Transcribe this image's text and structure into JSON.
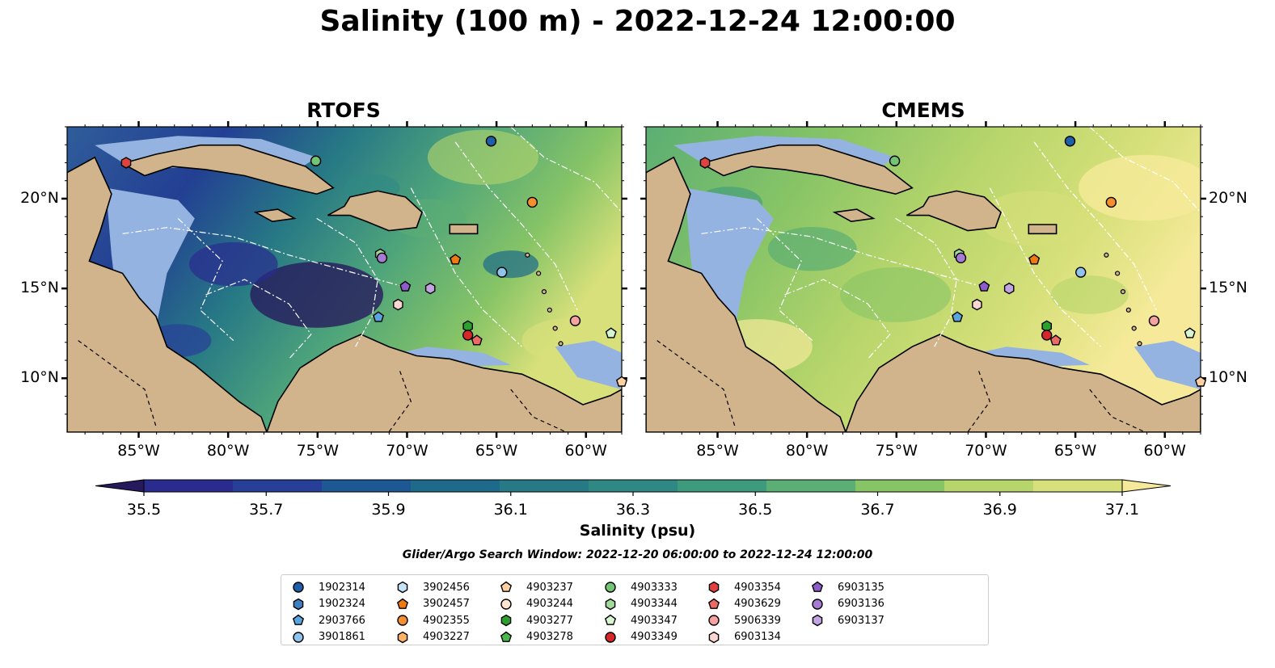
{
  "title": "Salinity (100 m) - 2022-12-24 12:00:00",
  "panels": [
    {
      "id": "rtofs",
      "title": "RTOFS",
      "variant": "rtofs"
    },
    {
      "id": "cmems",
      "title": "CMEMS",
      "variant": "cmems"
    }
  ],
  "map_extent": {
    "lon_min": -89,
    "lon_max": -58,
    "lat_min": 7,
    "lat_max": 24
  },
  "lon_ticks": [
    {
      "value": -85,
      "label": "85°W"
    },
    {
      "value": -80,
      "label": "80°W"
    },
    {
      "value": -75,
      "label": "75°W"
    },
    {
      "value": -70,
      "label": "70°W"
    },
    {
      "value": -65,
      "label": "65°W"
    },
    {
      "value": -60,
      "label": "60°W"
    }
  ],
  "lat_ticks": [
    {
      "value": 20,
      "label": "20°N"
    },
    {
      "value": 15,
      "label": "15°N"
    },
    {
      "value": 10,
      "label": "10°N"
    }
  ],
  "colorbar": {
    "label": "Salinity (psu)",
    "min": 35.4,
    "max": 37.2,
    "ticks": [
      {
        "value": 35.5,
        "label": "35.5"
      },
      {
        "value": 35.7,
        "label": "35.7"
      },
      {
        "value": 35.9,
        "label": "35.9"
      },
      {
        "value": 36.1,
        "label": "36.1"
      },
      {
        "value": 36.3,
        "label": "36.3"
      },
      {
        "value": 36.5,
        "label": "36.5"
      },
      {
        "value": 36.7,
        "label": "36.7"
      },
      {
        "value": 36.9,
        "label": "36.9"
      },
      {
        "value": 37.1,
        "label": "37.1"
      }
    ],
    "colors": [
      "#271a5c",
      "#2a2b8f",
      "#283f99",
      "#1e5894",
      "#1d6a8a",
      "#277985",
      "#308884",
      "#3e9a7d",
      "#5bae74",
      "#87c466",
      "#b6d56b",
      "#d7e07a",
      "#f6ea9a"
    ]
  },
  "search_window": "Glider/Argo Search Window: 2022-12-20 06:00:00 to 2022-12-24 12:00:00",
  "colors": {
    "land": "#d2b48c",
    "shelf": "#95b3e0",
    "deep_pacific": "#291a63"
  },
  "legend": [
    {
      "id": "1902314",
      "marker": "circle",
      "color": "#1f5fa8"
    },
    {
      "id": "1902324",
      "marker": "hexagon",
      "color": "#3d7fc1"
    },
    {
      "id": "2903766",
      "marker": "pentagon",
      "color": "#5aa5df"
    },
    {
      "id": "3901861",
      "marker": "circle",
      "color": "#8fc3ec"
    },
    {
      "id": "3902456",
      "marker": "hexagon",
      "color": "#c6e3f7"
    },
    {
      "id": "3902457",
      "marker": "pentagon",
      "color": "#f07a12"
    },
    {
      "id": "4902355",
      "marker": "circle",
      "color": "#f58f2e"
    },
    {
      "id": "4903227",
      "marker": "hexagon",
      "color": "#fdb265"
    },
    {
      "id": "4903237",
      "marker": "pentagon",
      "color": "#fdd0a2"
    },
    {
      "id": "4903244",
      "marker": "circle",
      "color": "#fde5cf"
    },
    {
      "id": "4903277",
      "marker": "hexagon",
      "color": "#2ca02c"
    },
    {
      "id": "4903278",
      "marker": "pentagon",
      "color": "#4cb84c"
    },
    {
      "id": "4903333",
      "marker": "circle",
      "color": "#74c476"
    },
    {
      "id": "4903344",
      "marker": "hexagon",
      "color": "#a1d99b"
    },
    {
      "id": "4903347",
      "marker": "pentagon",
      "color": "#d6f5d0"
    },
    {
      "id": "4903349",
      "marker": "circle",
      "color": "#d62728"
    },
    {
      "id": "4903354",
      "marker": "hexagon",
      "color": "#e0433f"
    },
    {
      "id": "4903629",
      "marker": "pentagon",
      "color": "#ea6a66"
    },
    {
      "id": "5906339",
      "marker": "circle",
      "color": "#f4a3a0"
    },
    {
      "id": "6903134",
      "marker": "hexagon",
      "color": "#fbd6d2"
    },
    {
      "id": "6903135",
      "marker": "pentagon",
      "color": "#8e5cc8"
    },
    {
      "id": "6903136",
      "marker": "circle",
      "color": "#a57bd4"
    },
    {
      "id": "6903137",
      "marker": "hexagon",
      "color": "#c2a4e3"
    }
  ],
  "platform_positions": [
    {
      "id": "1902314",
      "lon": -65.3,
      "lat": 23.2
    },
    {
      "id": "4903333",
      "lon": -75.1,
      "lat": 22.1
    },
    {
      "id": "4903354",
      "lon": -85.7,
      "lat": 22.0
    },
    {
      "id": "4902355",
      "lon": -63.0,
      "lat": 19.8
    },
    {
      "id": "3902457",
      "lon": -67.3,
      "lat": 16.6
    },
    {
      "id": "3901861",
      "lon": -64.7,
      "lat": 15.9
    },
    {
      "id": "4903344",
      "lon": -71.5,
      "lat": 16.9
    },
    {
      "id": "6903136",
      "lon": -71.4,
      "lat": 16.7
    },
    {
      "id": "6903135",
      "lon": -70.1,
      "lat": 15.1
    },
    {
      "id": "6903137",
      "lon": -68.7,
      "lat": 15.0
    },
    {
      "id": "6903134",
      "lon": -70.5,
      "lat": 14.1
    },
    {
      "id": "2903766",
      "lon": -71.6,
      "lat": 13.4
    },
    {
      "id": "4903277",
      "lon": -66.6,
      "lat": 12.9
    },
    {
      "id": "4903349",
      "lon": -66.6,
      "lat": 12.4
    },
    {
      "id": "4903629",
      "lon": -66.1,
      "lat": 12.1
    },
    {
      "id": "5906339",
      "lon": -60.6,
      "lat": 13.2
    },
    {
      "id": "4903347",
      "lon": -58.6,
      "lat": 12.5
    },
    {
      "id": "4903237",
      "lon": -58.0,
      "lat": 9.8
    }
  ]
}
